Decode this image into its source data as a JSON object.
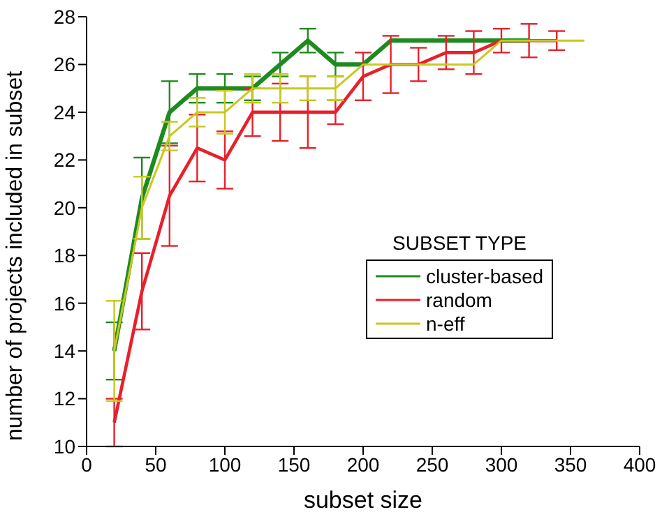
{
  "chart_data": {
    "type": "line",
    "xlabel": "subset size",
    "ylabel": "number of projects included in subset",
    "legend_title": "SUBSET TYPE",
    "x": [
      20,
      40,
      60,
      80,
      100,
      120,
      140,
      160,
      180,
      200,
      220,
      240,
      260,
      280,
      300,
      320,
      340,
      360
    ],
    "series": [
      {
        "name": "cluster-based",
        "color": "#1f8a1f",
        "values": [
          14,
          20.4,
          24,
          25,
          25,
          25,
          26,
          27,
          26,
          26,
          27,
          27,
          27,
          27,
          27,
          27,
          null,
          null
        ],
        "errors": [
          1.2,
          1.7,
          1.3,
          0.6,
          0.6,
          0.5,
          0.5,
          0.5,
          0.5,
          null,
          null,
          null,
          null,
          null,
          null,
          null,
          null,
          null
        ]
      },
      {
        "name": "random",
        "color": "#e8202a",
        "values": [
          11,
          16.5,
          20.5,
          22.5,
          22,
          24,
          24,
          24,
          24,
          25.5,
          26,
          26,
          26.5,
          26.5,
          27,
          27,
          27,
          null
        ],
        "errors": [
          1,
          1.6,
          2.1,
          1.4,
          1.2,
          1,
          1.2,
          1.5,
          0.5,
          1,
          1.2,
          0.7,
          0.7,
          0.9,
          0.5,
          0.7,
          0.4,
          null
        ]
      },
      {
        "name": "n-eff",
        "color": "#c8c81e",
        "values": [
          14,
          20,
          23,
          24,
          24,
          25,
          25,
          25,
          25,
          26,
          26,
          26,
          26,
          26,
          27,
          27,
          27,
          27
        ],
        "errors": [
          2.1,
          1.3,
          0.6,
          0.6,
          0.9,
          0.6,
          0.6,
          0.5,
          0.5,
          null,
          null,
          null,
          null,
          null,
          null,
          null,
          null,
          null
        ]
      }
    ],
    "xlim": [
      0,
      400
    ],
    "xticks": [
      0,
      50,
      100,
      150,
      200,
      250,
      300,
      350,
      400
    ],
    "ylim": [
      10,
      28
    ],
    "yticks": [
      10,
      12,
      14,
      16,
      18,
      20,
      22,
      24,
      26,
      28
    ],
    "grid": false,
    "legend": "right",
    "marker": "none",
    "line_style": "solid"
  }
}
